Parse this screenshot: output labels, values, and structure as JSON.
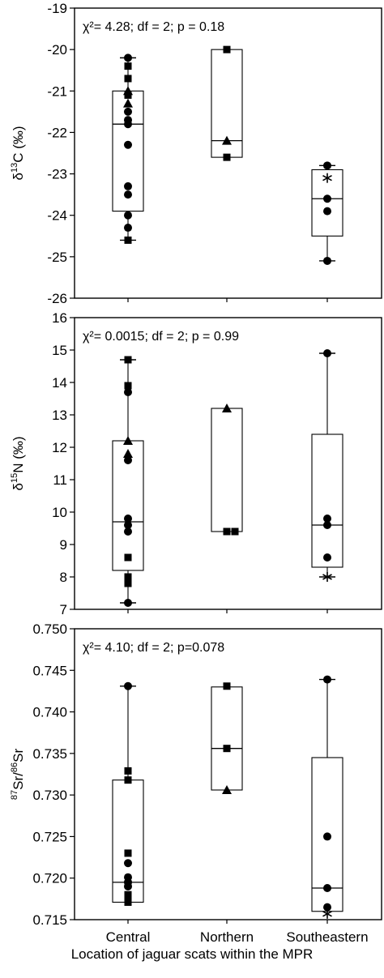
{
  "chart_data": [
    {
      "type": "box",
      "ylabel_main": "δ",
      "ylabel_sup": "13",
      "ylabel_rest": "C (‰)",
      "stats_text": "χ²= 4.28; df = 2; p = 0.18",
      "ylim": [
        -26,
        -19
      ],
      "yticks": [
        "-19",
        "-20",
        "-21",
        "-22",
        "-23",
        "-24",
        "-25",
        "-26"
      ],
      "categories": [
        "Central",
        "Northern",
        "Southeastern"
      ],
      "boxes": [
        {
          "q1": -23.9,
          "median": -21.8,
          "q3": -21.0,
          "whisker_low": -24.6,
          "whisker_high": -20.2,
          "box_low": -23.9,
          "box_high": -21.0
        },
        {
          "q1": -22.6,
          "median": -22.2,
          "q3": -20.0,
          "whisker_low": null,
          "whisker_high": null
        },
        {
          "q1": -24.5,
          "median": -23.6,
          "q3": -22.9,
          "whisker_low": -25.1,
          "whisker_high": -22.8
        }
      ],
      "points": [
        {
          "cat": 0,
          "y": -20.2,
          "shape": "circle"
        },
        {
          "cat": 0,
          "y": -20.4,
          "shape": "square"
        },
        {
          "cat": 0,
          "y": -20.7,
          "shape": "square"
        },
        {
          "cat": 0,
          "y": -21.0,
          "shape": "triangle"
        },
        {
          "cat": 0,
          "y": -21.1,
          "shape": "square"
        },
        {
          "cat": 0,
          "y": -21.3,
          "shape": "triangle"
        },
        {
          "cat": 0,
          "y": -21.5,
          "shape": "circle"
        },
        {
          "cat": 0,
          "y": -21.7,
          "shape": "circle"
        },
        {
          "cat": 0,
          "y": -21.8,
          "shape": "circle"
        },
        {
          "cat": 0,
          "y": -22.3,
          "shape": "circle"
        },
        {
          "cat": 0,
          "y": -23.3,
          "shape": "circle"
        },
        {
          "cat": 0,
          "y": -23.5,
          "shape": "circle"
        },
        {
          "cat": 0,
          "y": -24.0,
          "shape": "circle"
        },
        {
          "cat": 0,
          "y": -24.3,
          "shape": "circle"
        },
        {
          "cat": 0,
          "y": -24.6,
          "shape": "square"
        },
        {
          "cat": 1,
          "y": -20.0,
          "shape": "square"
        },
        {
          "cat": 1,
          "y": -22.2,
          "shape": "triangle"
        },
        {
          "cat": 1,
          "y": -22.6,
          "shape": "square"
        },
        {
          "cat": 2,
          "y": -22.8,
          "shape": "circle"
        },
        {
          "cat": 2,
          "y": -23.1,
          "shape": "star"
        },
        {
          "cat": 2,
          "y": -23.6,
          "shape": "circle"
        },
        {
          "cat": 2,
          "y": -23.9,
          "shape": "circle"
        },
        {
          "cat": 2,
          "y": -25.1,
          "shape": "circle"
        }
      ]
    },
    {
      "type": "box",
      "ylabel_main": "δ",
      "ylabel_sup": "15",
      "ylabel_rest": "N (‰)",
      "stats_text": "χ²= 0.0015; df = 2; p = 0.99",
      "ylim": [
        7,
        16
      ],
      "yticks": [
        "7",
        "8",
        "9",
        "10",
        "11",
        "12",
        "13",
        "14",
        "15",
        "16"
      ],
      "categories": [
        "Central",
        "Northern",
        "Southeastern"
      ],
      "boxes": [
        {
          "q1": 8.2,
          "median": 9.7,
          "q3": 12.2,
          "whisker_low": 7.2,
          "whisker_high": 14.7
        },
        {
          "q1": 9.4,
          "median": null,
          "q3": 13.2,
          "whisker_low": null,
          "whisker_high": null
        },
        {
          "q1": 8.3,
          "median": 9.6,
          "q3": 12.4,
          "whisker_low": 8.0,
          "whisker_high": 14.9
        }
      ],
      "points": [
        {
          "cat": 0,
          "y": 14.7,
          "shape": "square"
        },
        {
          "cat": 0,
          "y": 13.9,
          "shape": "square"
        },
        {
          "cat": 0,
          "y": 13.7,
          "shape": "circle"
        },
        {
          "cat": 0,
          "y": 12.2,
          "shape": "triangle"
        },
        {
          "cat": 0,
          "y": 11.8,
          "shape": "triangle"
        },
        {
          "cat": 0,
          "y": 11.6,
          "shape": "circle"
        },
        {
          "cat": 0,
          "y": 9.8,
          "shape": "circle"
        },
        {
          "cat": 0,
          "y": 9.6,
          "shape": "circle"
        },
        {
          "cat": 0,
          "y": 9.4,
          "shape": "circle"
        },
        {
          "cat": 0,
          "y": 8.6,
          "shape": "square"
        },
        {
          "cat": 0,
          "y": 8.0,
          "shape": "square"
        },
        {
          "cat": 0,
          "y": 7.8,
          "shape": "square"
        },
        {
          "cat": 0,
          "y": 7.2,
          "shape": "circle"
        },
        {
          "cat": 1,
          "y": 13.2,
          "shape": "triangle"
        },
        {
          "cat": 1,
          "y": 9.4,
          "shape": "square"
        },
        {
          "cat": 1,
          "y": 9.4,
          "shape": "square",
          "dx": 10
        },
        {
          "cat": 2,
          "y": 14.9,
          "shape": "circle"
        },
        {
          "cat": 2,
          "y": 9.8,
          "shape": "circle"
        },
        {
          "cat": 2,
          "y": 9.6,
          "shape": "circle"
        },
        {
          "cat": 2,
          "y": 8.6,
          "shape": "circle"
        },
        {
          "cat": 2,
          "y": 8.0,
          "shape": "star"
        }
      ]
    },
    {
      "type": "box",
      "ylabel_main": "",
      "ylabel_sup": "87",
      "ylabel_rest": "Sr/",
      "ylabel_sup2": "86",
      "ylabel_rest2": "Sr",
      "stats_text": "χ²= 4.10; df = 2; p=0.078",
      "ylim": [
        0.715,
        0.75
      ],
      "yticks": [
        "0.715",
        "0.720",
        "0.725",
        "0.730",
        "0.735",
        "0.740",
        "0.745",
        "0.750"
      ],
      "categories": [
        "Central",
        "Northern",
        "Southeastern"
      ],
      "boxes": [
        {
          "q1": 0.7171,
          "median": 0.7195,
          "q3": 0.7318,
          "whisker_low": null,
          "whisker_high": 0.7431
        },
        {
          "q1": 0.7306,
          "median": 0.7356,
          "q3": 0.743,
          "whisker_low": null,
          "whisker_high": null
        },
        {
          "q1": 0.716,
          "median": 0.7188,
          "q3": 0.7345,
          "whisker_low": null,
          "whisker_high": 0.7439
        }
      ],
      "points": [
        {
          "cat": 0,
          "y": 0.7431,
          "shape": "circle"
        },
        {
          "cat": 0,
          "y": 0.7329,
          "shape": "square"
        },
        {
          "cat": 0,
          "y": 0.7318,
          "shape": "square"
        },
        {
          "cat": 0,
          "y": 0.723,
          "shape": "square"
        },
        {
          "cat": 0,
          "y": 0.7218,
          "shape": "circle"
        },
        {
          "cat": 0,
          "y": 0.7201,
          "shape": "circle"
        },
        {
          "cat": 0,
          "y": 0.7195,
          "shape": "circle"
        },
        {
          "cat": 0,
          "y": 0.719,
          "shape": "circle"
        },
        {
          "cat": 0,
          "y": 0.718,
          "shape": "square"
        },
        {
          "cat": 0,
          "y": 0.7175,
          "shape": "square"
        },
        {
          "cat": 0,
          "y": 0.7171,
          "shape": "square"
        },
        {
          "cat": 1,
          "y": 0.7431,
          "shape": "square"
        },
        {
          "cat": 1,
          "y": 0.7356,
          "shape": "square"
        },
        {
          "cat": 1,
          "y": 0.7306,
          "shape": "triangle"
        },
        {
          "cat": 2,
          "y": 0.7439,
          "shape": "circle"
        },
        {
          "cat": 2,
          "y": 0.725,
          "shape": "circle"
        },
        {
          "cat": 2,
          "y": 0.7188,
          "shape": "circle"
        },
        {
          "cat": 2,
          "y": 0.7165,
          "shape": "circle"
        },
        {
          "cat": 2,
          "y": 0.7157,
          "shape": "star"
        }
      ]
    }
  ],
  "x_axis": {
    "labels": [
      "Central",
      "Northern",
      "Southeastern"
    ],
    "title": "Location of jaguar scats within the MPR"
  }
}
